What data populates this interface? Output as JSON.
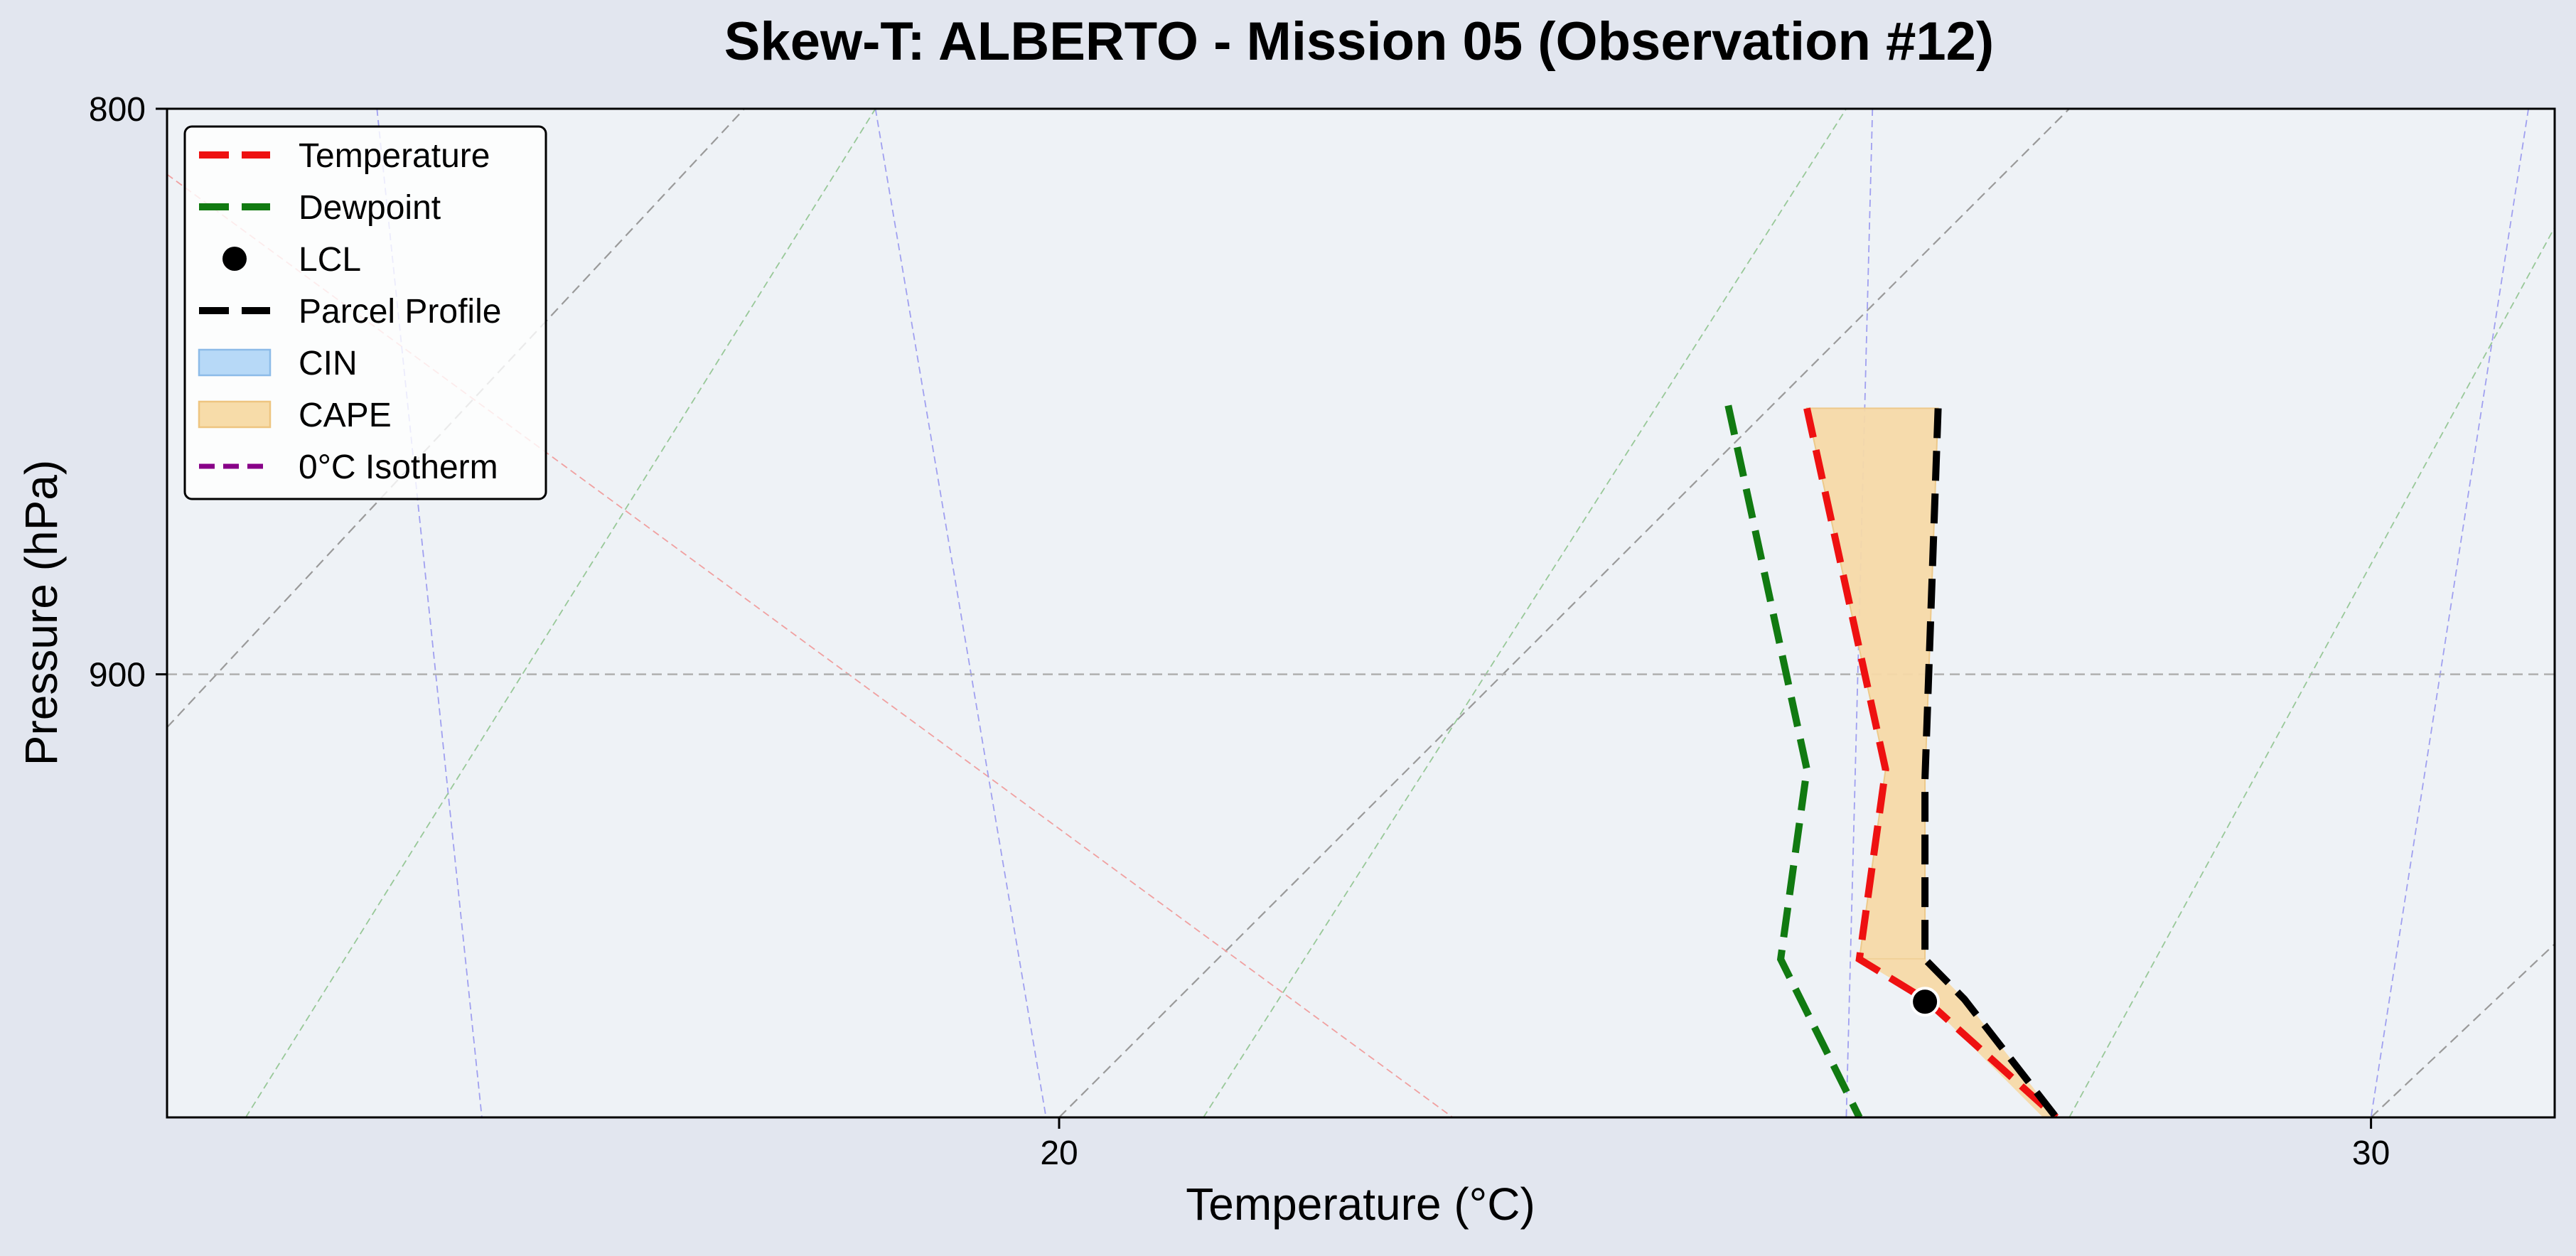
{
  "chart_data": {
    "type": "line",
    "title": "Skew-T: ALBERTO - Mission 05 (Observation #12)",
    "xlabel": "Temperature (°C)",
    "ylabel": "Pressure (hPa)",
    "xlim": [
      13.2,
      31.4
    ],
    "ylim": [
      987,
      800
    ],
    "y_scale": "log",
    "x_ticks": [
      20,
      30
    ],
    "y_ticks": [
      800,
      900
    ],
    "grid": true,
    "legend_position": "top-left",
    "colors": {
      "temperature": "#ee1111",
      "dewpoint": "#117a11",
      "parcel": "#000000",
      "lcl": "#000000",
      "cin": "#9ccaf5",
      "cape": "#f5d9a8",
      "isotherm0": "#880088"
    },
    "legend": [
      {
        "label": "Temperature",
        "kind": "line",
        "color": "#ee1111",
        "dash": "42 18",
        "width": 10
      },
      {
        "label": "Dewpoint",
        "kind": "line",
        "color": "#117a11",
        "dash": "42 18",
        "width": 10
      },
      {
        "label": "LCL",
        "kind": "marker",
        "color": "#000000"
      },
      {
        "label": "Parcel Profile",
        "kind": "line",
        "color": "#000000",
        "dash": "42 18",
        "width": 10
      },
      {
        "label": "CIN",
        "kind": "patch",
        "color": "#b7d9f7",
        "edge": "#8cbbe8"
      },
      {
        "label": "CAPE",
        "kind": "patch",
        "color": "#f7dca9",
        "edge": "#eec580"
      },
      {
        "label": "0°C Isotherm",
        "kind": "line",
        "color": "#880088",
        "dash": "22 12",
        "width": 7
      }
    ],
    "series": [
      {
        "name": "Temperature",
        "points": [
          {
            "t": 25.7,
            "p": 851.5
          },
          {
            "t": 26.3,
            "p": 918.0
          },
          {
            "t": 26.1,
            "p": 955.0
          },
          {
            "t": 26.6,
            "p": 963.0
          },
          {
            "t": 27.6,
            "p": 987.0
          }
        ]
      },
      {
        "name": "Dewpoint",
        "points": [
          {
            "t": 25.1,
            "p": 851.0
          },
          {
            "t": 25.7,
            "p": 918.0
          },
          {
            "t": 25.5,
            "p": 955.0
          },
          {
            "t": 26.1,
            "p": 987.0
          }
        ]
      },
      {
        "name": "Parcel Profile",
        "points": [
          {
            "t": 26.7,
            "p": 851.5
          },
          {
            "t": 26.6,
            "p": 920.0
          },
          {
            "t": 26.6,
            "p": 955.0
          },
          {
            "t": 26.9,
            "p": 963.0
          },
          {
            "t": 27.6,
            "p": 987.0
          }
        ]
      }
    ],
    "lcl": {
      "t": 26.6,
      "p": 963.5
    },
    "cape_region": {
      "upper": [
        {
          "t": 25.7,
          "p": 851.5
        },
        {
          "t": 26.7,
          "p": 851.5
        }
      ],
      "right": [
        {
          "t": 26.7,
          "p": 851.5
        },
        {
          "t": 26.6,
          "p": 920.0
        },
        {
          "t": 26.6,
          "p": 955.0
        }
      ],
      "left": [
        {
          "t": 26.1,
          "p": 955.0
        },
        {
          "t": 26.3,
          "p": 918.0
        },
        {
          "t": 25.7,
          "p": 851.5
        }
      ]
    },
    "cape_lower_sliver": [
      {
        "t": 26.6,
        "p": 955.0
      },
      {
        "t": 26.9,
        "p": 963.0
      },
      {
        "t": 27.6,
        "p": 987.0
      },
      {
        "t": 27.5,
        "p": 987.0
      },
      {
        "t": 26.6,
        "p": 963.0
      },
      {
        "t": 26.1,
        "p": 955.0
      }
    ],
    "background_lines": {
      "skewed_isotherms": [
        [
          {
            "t": 13.2,
            "p": 910
          },
          {
            "t": 17.6,
            "p": 800
          }
        ],
        [
          {
            "t": 20.0,
            "p": 987
          },
          {
            "t": 27.7,
            "p": 800
          }
        ],
        [
          {
            "t": 30.0,
            "p": 987
          },
          {
            "t": 31.4,
            "p": 952
          }
        ]
      ],
      "dry_adiabats": [
        [
          {
            "t": 13.2,
            "p": 811
          },
          {
            "t": 23.0,
            "p": 987
          }
        ]
      ],
      "moist_adiabats": [
        [
          {
            "t": 14.8,
            "p": 800
          },
          {
            "t": 15.6,
            "p": 987
          }
        ],
        [
          {
            "t": 18.6,
            "p": 800
          },
          {
            "t": 19.9,
            "p": 987
          }
        ],
        [
          {
            "t": 26.2,
            "p": 800
          },
          {
            "t": 26.0,
            "p": 987
          }
        ],
        [
          {
            "t": 31.2,
            "p": 800
          },
          {
            "t": 30.0,
            "p": 987
          }
        ]
      ],
      "mixing_ratio_lines": [
        [
          {
            "t": 13.8,
            "p": 987
          },
          {
            "t": 18.6,
            "p": 800
          }
        ],
        [
          {
            "t": 21.1,
            "p": 987
          },
          {
            "t": 26.0,
            "p": 800
          }
        ],
        [
          {
            "t": 27.7,
            "p": 987
          },
          {
            "t": 31.4,
            "p": 820
          }
        ]
      ]
    }
  }
}
